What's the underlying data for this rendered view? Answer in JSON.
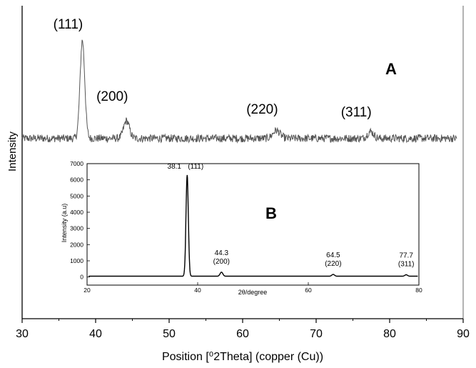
{
  "chart_data": [
    {
      "type": "line",
      "panel_label": "A",
      "xlabel": "Position [⁰2Theta] (copper (Cu))",
      "ylabel": "Intensity",
      "xlim": [
        30,
        90
      ],
      "x_ticks": [
        "30",
        "40",
        "50",
        "60",
        "70",
        "80",
        "90"
      ],
      "y_ticks": [],
      "grid": false,
      "baseline": 0.13,
      "noise": 0.04,
      "peaks": [
        {
          "label": "(111)",
          "x": 38.2,
          "height": 1.0,
          "width": 0.45
        },
        {
          "label": "(200)",
          "x": 44.2,
          "height": 0.18,
          "width": 0.55
        },
        {
          "label": "(220)",
          "x": 64.6,
          "height": 0.08,
          "width": 0.7
        },
        {
          "label": "(311)",
          "x": 77.4,
          "height": 0.07,
          "width": 0.6
        }
      ]
    },
    {
      "type": "line",
      "panel_label": "B",
      "xlabel": "2θ/degree",
      "ylabel": "Intensity (a.u)",
      "xlim": [
        20,
        80
      ],
      "ylim": [
        -500,
        7000
      ],
      "x_ticks": [
        "20",
        "40",
        "60",
        "80"
      ],
      "y_ticks": [
        "0",
        "1000",
        "2000",
        "3000",
        "4000",
        "5000",
        "6000",
        "7000"
      ],
      "grid": false,
      "baseline": 50,
      "peaks": [
        {
          "value_label": "38.1",
          "label": "(111)",
          "x": 38.1,
          "y": 6300,
          "width": 0.3
        },
        {
          "value_label": "44.3",
          "label": "(200)",
          "x": 44.3,
          "y": 300,
          "width": 0.35
        },
        {
          "value_label": "64.5",
          "label": "(220)",
          "x": 64.5,
          "y": 160,
          "width": 0.35
        },
        {
          "value_label": "77.7",
          "label": "(311)",
          "x": 77.7,
          "y": 140,
          "width": 0.35
        }
      ]
    }
  ]
}
